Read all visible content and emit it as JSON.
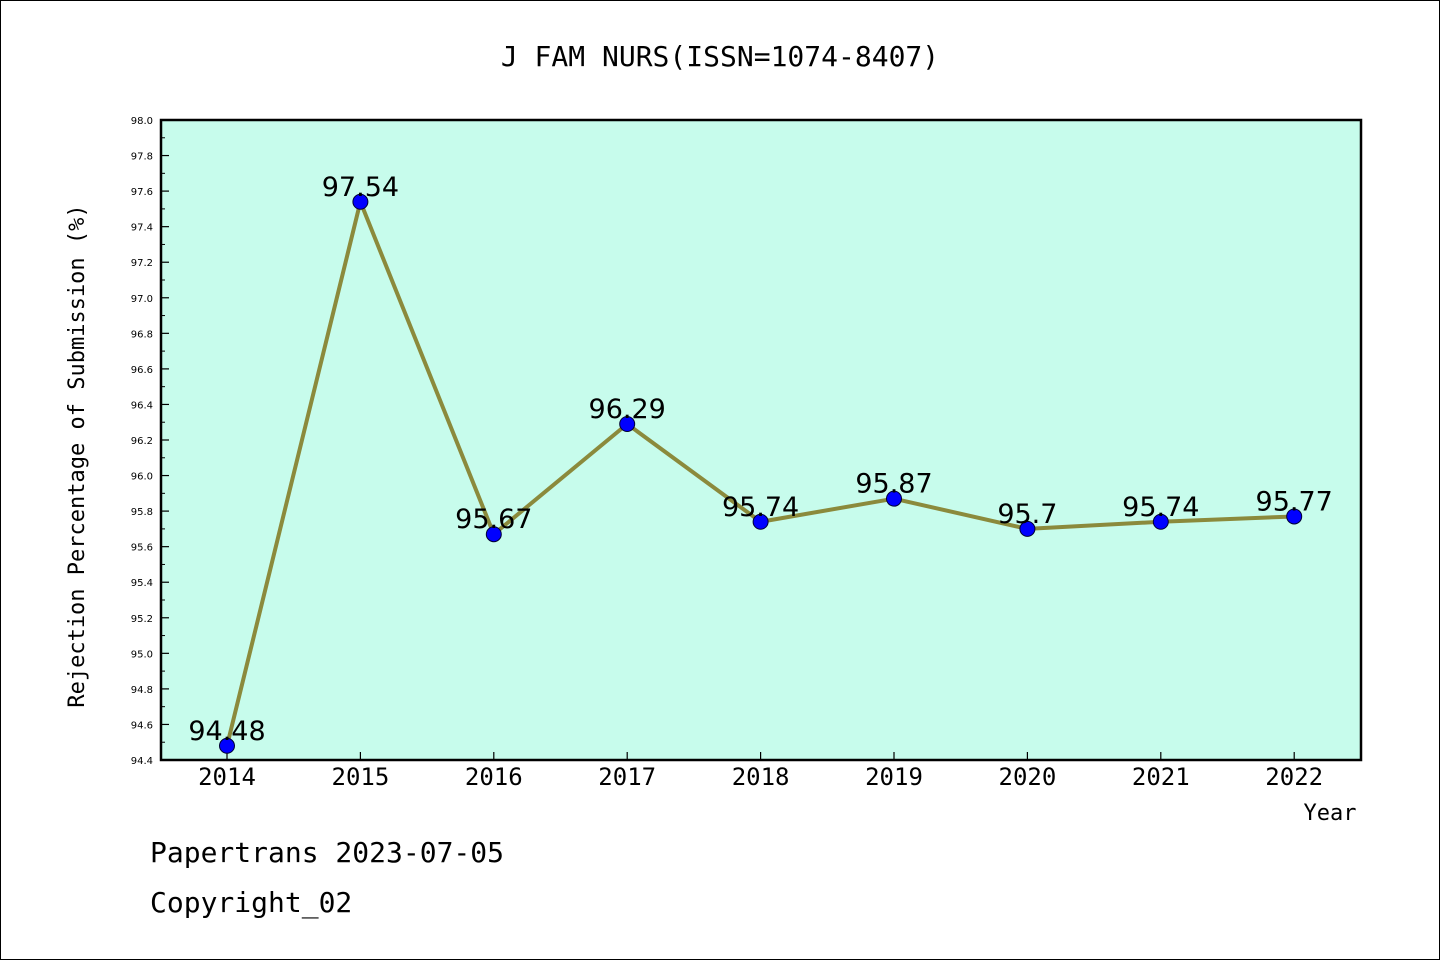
{
  "chart_data": {
    "type": "line",
    "title": "J FAM NURS(ISSN=1074-8407)",
    "xlabel": "Year",
    "ylabel": "Rejection Percentage of Submission (%)",
    "categories": [
      "2014",
      "2015",
      "2016",
      "2017",
      "2018",
      "2019",
      "2020",
      "2021",
      "2022"
    ],
    "series": [
      {
        "values": [
          94.48,
          97.54,
          95.67,
          96.29,
          95.74,
          95.87,
          95.7,
          95.74,
          95.77
        ],
        "data_labels": [
          "94.48",
          "97.54",
          "95.67",
          "96.29",
          "95.74",
          "95.87",
          "95.7",
          "95.74",
          "95.77"
        ],
        "line_color": "#8b8a3c",
        "marker_color": "#0000ff"
      }
    ],
    "ylim": [
      94.4,
      98.0
    ],
    "y_ticks": [
      "94.4",
      "94.6",
      "94.8",
      "95.0",
      "95.2",
      "95.4",
      "95.6",
      "95.8",
      "96.0",
      "96.2",
      "96.4",
      "96.6",
      "96.8",
      "97.0",
      "97.2",
      "97.4",
      "97.6",
      "97.8",
      "98.0"
    ],
    "plot_background": "#c7fcec",
    "grid": false
  },
  "footer": {
    "line1": "Papertrans 2023-07-05",
    "line2": "Copyright_02"
  }
}
